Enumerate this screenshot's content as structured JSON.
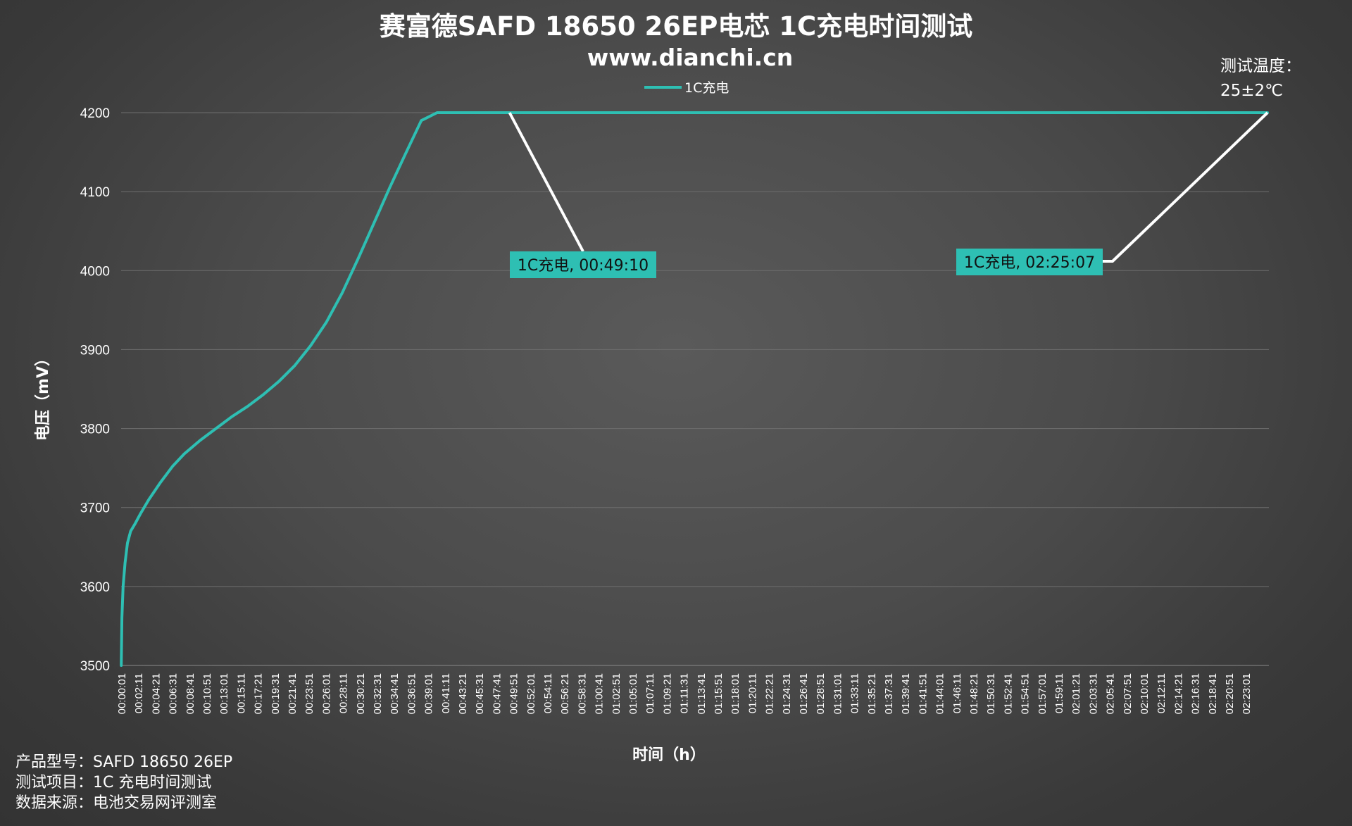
{
  "chart_data": {
    "type": "line",
    "title": "赛富德SAFD 18650 26EP电芯 1C充电时间测试",
    "subtitle": "www.dianchi.cn",
    "xlabel": "时间（h）",
    "ylabel": "电压（mV）",
    "ylim": [
      3500,
      4200
    ],
    "yticks": [
      3500,
      3600,
      3700,
      3800,
      3900,
      4000,
      4100,
      4200
    ],
    "grid": "horizontal",
    "legend_position": "top",
    "x_categories": [
      "00:00:01",
      "00:02:11",
      "00:04:21",
      "00:06:31",
      "00:08:41",
      "00:10:51",
      "00:13:01",
      "00:15:11",
      "00:17:21",
      "00:19:31",
      "00:21:41",
      "00:23:51",
      "00:26:01",
      "00:28:11",
      "00:30:21",
      "00:32:31",
      "00:34:41",
      "00:36:51",
      "00:39:01",
      "00:41:11",
      "00:43:21",
      "00:45:31",
      "00:47:41",
      "00:49:51",
      "00:52:01",
      "00:54:11",
      "00:56:21",
      "00:58:31",
      "01:00:41",
      "01:02:51",
      "01:05:01",
      "01:07:11",
      "01:09:21",
      "01:11:31",
      "01:13:41",
      "01:15:51",
      "01:18:01",
      "01:20:11",
      "01:22:21",
      "01:24:31",
      "01:26:41",
      "01:28:51",
      "01:31:01",
      "01:33:11",
      "01:35:21",
      "01:37:31",
      "01:39:41",
      "01:41:51",
      "01:44:01",
      "01:46:11",
      "01:48:21",
      "01:50:31",
      "01:52:41",
      "01:54:51",
      "01:57:01",
      "01:59:11",
      "02:01:21",
      "02:03:31",
      "02:05:41",
      "02:07:51",
      "02:10:01",
      "02:12:11",
      "02:14:21",
      "02:16:31",
      "02:18:41",
      "02:20:51",
      "02:23:01"
    ],
    "series": [
      {
        "name": "1C充电",
        "color": "#2ebfb3",
        "x_minutes": [
          0.02,
          0.1,
          0.25,
          0.5,
          0.8,
          1.2,
          1.8,
          2.5,
          3.5,
          5,
          6.5,
          8,
          10,
          12,
          14,
          16,
          18,
          20,
          22,
          24,
          26,
          28,
          30,
          32,
          34,
          36,
          38,
          40,
          42,
          44,
          46,
          48,
          49.17,
          60,
          80,
          100,
          120,
          145.12
        ],
        "values": [
          3500,
          3560,
          3600,
          3630,
          3655,
          3670,
          3680,
          3693,
          3710,
          3732,
          3752,
          3768,
          3785,
          3800,
          3815,
          3828,
          3843,
          3860,
          3880,
          3905,
          3935,
          3972,
          4015,
          4060,
          4105,
          4148,
          4190,
          4200,
          4200,
          4200,
          4200,
          4200,
          4200,
          4200,
          4200,
          4200,
          4200,
          4200
        ]
      }
    ],
    "annotations": [
      {
        "label": "1C充电, 00:49:10",
        "x_minutes": 49.17,
        "y": 4200
      },
      {
        "label": "1C充电, 02:25:07",
        "x_minutes": 145.12,
        "y": 4200
      }
    ]
  },
  "temperature_note": {
    "line1": "测试温度：",
    "line2": "25±2℃"
  },
  "info": {
    "product": "产品型号：SAFD 18650 26EP",
    "test_item": "测试项目：1C 充电时间测试",
    "source": "数据来源：电池交易网评测室"
  }
}
